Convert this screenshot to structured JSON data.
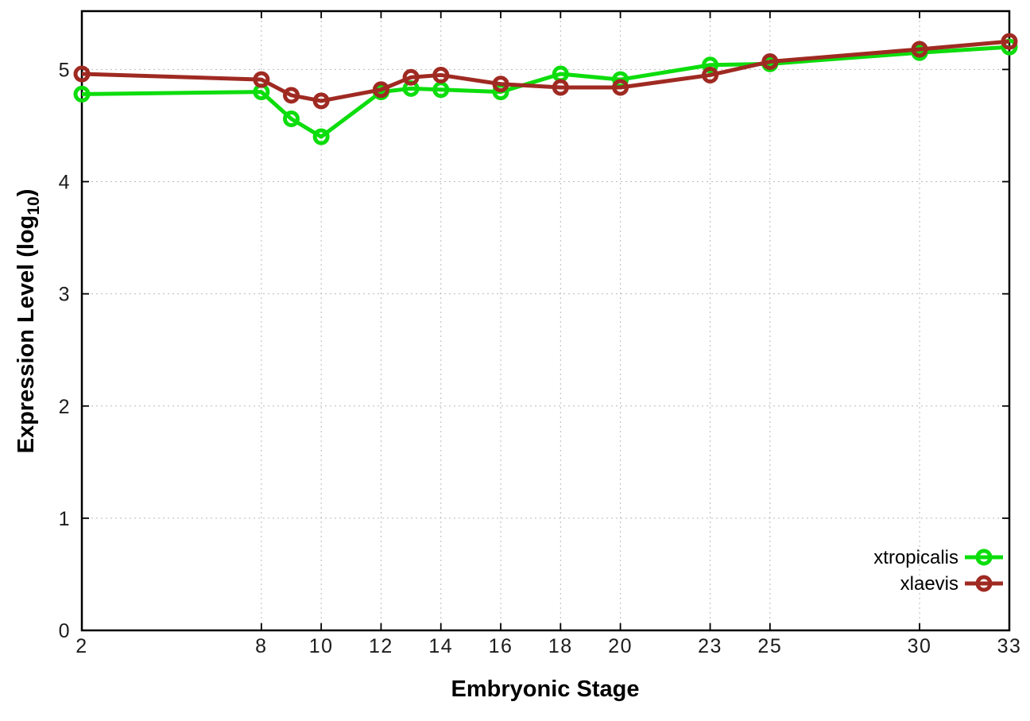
{
  "chart_data": {
    "type": "line",
    "title": "",
    "xlabel": "Embryonic Stage",
    "ylabel": {
      "text": "Expression Level (log",
      "subscript": "10",
      "suffix": ")"
    },
    "x": [
      2,
      8,
      9,
      10,
      12,
      13,
      14,
      16,
      18,
      20,
      23,
      25,
      30,
      33
    ],
    "series": [
      {
        "name": "xtropicalis",
        "color": "#0ddd0d",
        "values": [
          4.78,
          4.8,
          4.56,
          4.4,
          4.8,
          4.83,
          4.82,
          4.8,
          4.96,
          4.91,
          5.04,
          5.05,
          5.15,
          5.2
        ]
      },
      {
        "name": "xlaevis",
        "color": "#9f2a22",
        "values": [
          4.96,
          4.91,
          4.77,
          4.72,
          4.82,
          4.93,
          4.95,
          4.87,
          4.84,
          4.84,
          4.95,
          5.07,
          5.18,
          5.25
        ]
      }
    ],
    "xticks": [
      2,
      8,
      10,
      12,
      14,
      16,
      18,
      20,
      23,
      25,
      30,
      33
    ],
    "yticks": [
      0,
      1,
      2,
      3,
      4,
      5
    ],
    "xlim": [
      2,
      33
    ],
    "ylim": [
      0,
      5.52
    ],
    "grid": true,
    "marker": "open-circle",
    "legend_position": "bottom-right",
    "colors": {
      "background": "#ffffff",
      "border": "#000000",
      "grid": "#b9b9b9",
      "tick_text": "#1c1c1c"
    }
  }
}
